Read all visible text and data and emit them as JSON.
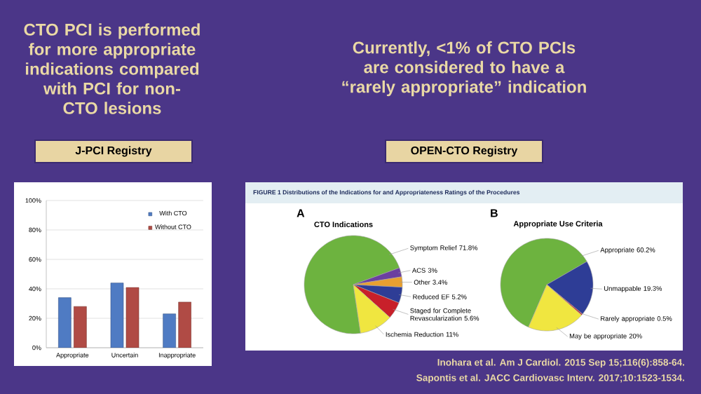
{
  "chart_data": [
    {
      "type": "bar",
      "title": "J-PCI Registry",
      "categories": [
        "Appropriate",
        "Uncertain",
        "Inappropriate"
      ],
      "series": [
        {
          "name": "With CTO",
          "color": "#4f7bc3",
          "values": [
            34,
            44,
            23
          ]
        },
        {
          "name": "Without CTO",
          "color": "#b04b45",
          "values": [
            28,
            41,
            31
          ]
        }
      ],
      "ylim": [
        0,
        100
      ],
      "yticks": [
        {
          "value": 0,
          "label": "0%"
        },
        {
          "value": 20,
          "label": "20%"
        },
        {
          "value": 40,
          "label": "40%"
        },
        {
          "value": 60,
          "label": "60%"
        },
        {
          "value": 80,
          "label": "80%"
        },
        {
          "value": 100,
          "label": "100%"
        }
      ],
      "grid": "y",
      "legend": "top right",
      "annotations": [
        "CTO PCI is performed for more appropriate indications compared with PCI for non-CTO lesions"
      ]
    },
    {
      "type": "pie",
      "title": "CTO Indications",
      "categories": [
        "Symptom Relief",
        "ACS",
        "Other",
        "Reduced EF",
        "Staged for Complete Revascularization",
        "Ischemia Reduction"
      ],
      "values": [
        71.8,
        3,
        3.4,
        5.2,
        5.6,
        11
      ],
      "value_labels": [
        "71.8%",
        "3%",
        "3.4%",
        "5.2%",
        "5.6%",
        "11%"
      ],
      "colors": [
        "#6db33f",
        "#6b3fa0",
        "#e8a030",
        "#2e3d96",
        "#c8202a",
        "#f0e640"
      ],
      "annotations": [
        "Currently, <1% of CTO PCIs are considered to have a “rarely appropriate” indication",
        "OPEN-CTO Registry",
        "FIGURE 1  Distributions of the Indications for and Appropriateness Ratings of the Procedures",
        "A"
      ]
    },
    {
      "type": "pie",
      "title": "Appropriate Use Criteria",
      "categories": [
        "Appropriate",
        "Unmappable",
        "Rarely appropriate",
        "May be appropriate"
      ],
      "values": [
        60.2,
        19.3,
        0.5,
        20
      ],
      "value_labels": [
        "60.2%",
        "19.3%",
        "0.5%",
        "20%"
      ],
      "colors": [
        "#6db33f",
        "#2e3d96",
        "#c8202a",
        "#f0e640"
      ],
      "annotations": [
        "B",
        "Inohara et al. Am J Cardiol. 2015 Sep 15;116(6):858-64.",
        "Sapontis et al. JACC Cardiovasc Interv. 2017;10:1523-1534."
      ]
    }
  ]
}
